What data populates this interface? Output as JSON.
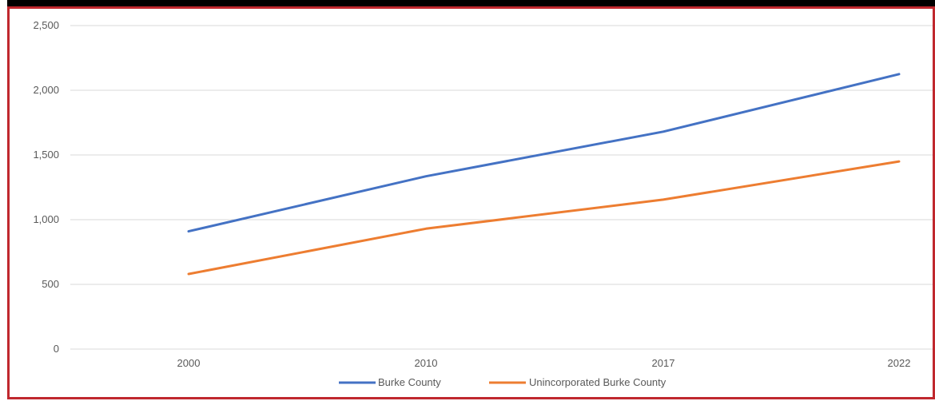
{
  "chart_data": {
    "type": "line",
    "title": "",
    "xlabel": "",
    "ylabel": "",
    "categories": [
      "2000",
      "2010",
      "2017",
      "2022"
    ],
    "y_ticks": [
      "0",
      "500",
      "1,000",
      "1,500",
      "2,000",
      "2,500"
    ],
    "ylim": [
      0,
      2500
    ],
    "grid": true,
    "legend_position": "bottom",
    "series": [
      {
        "name": "Burke County",
        "values": [
          910,
          1335,
          1680,
          2125
        ],
        "color": "#4472c4"
      },
      {
        "name": "Unincorporated Burke County",
        "values": [
          580,
          930,
          1155,
          1450
        ],
        "color": "#ed7d31"
      }
    ]
  },
  "colors": {
    "frame_border": "#c0282e",
    "top_bar": "#000000",
    "grid": "#d9d9d9",
    "axis_text": "#595959"
  }
}
